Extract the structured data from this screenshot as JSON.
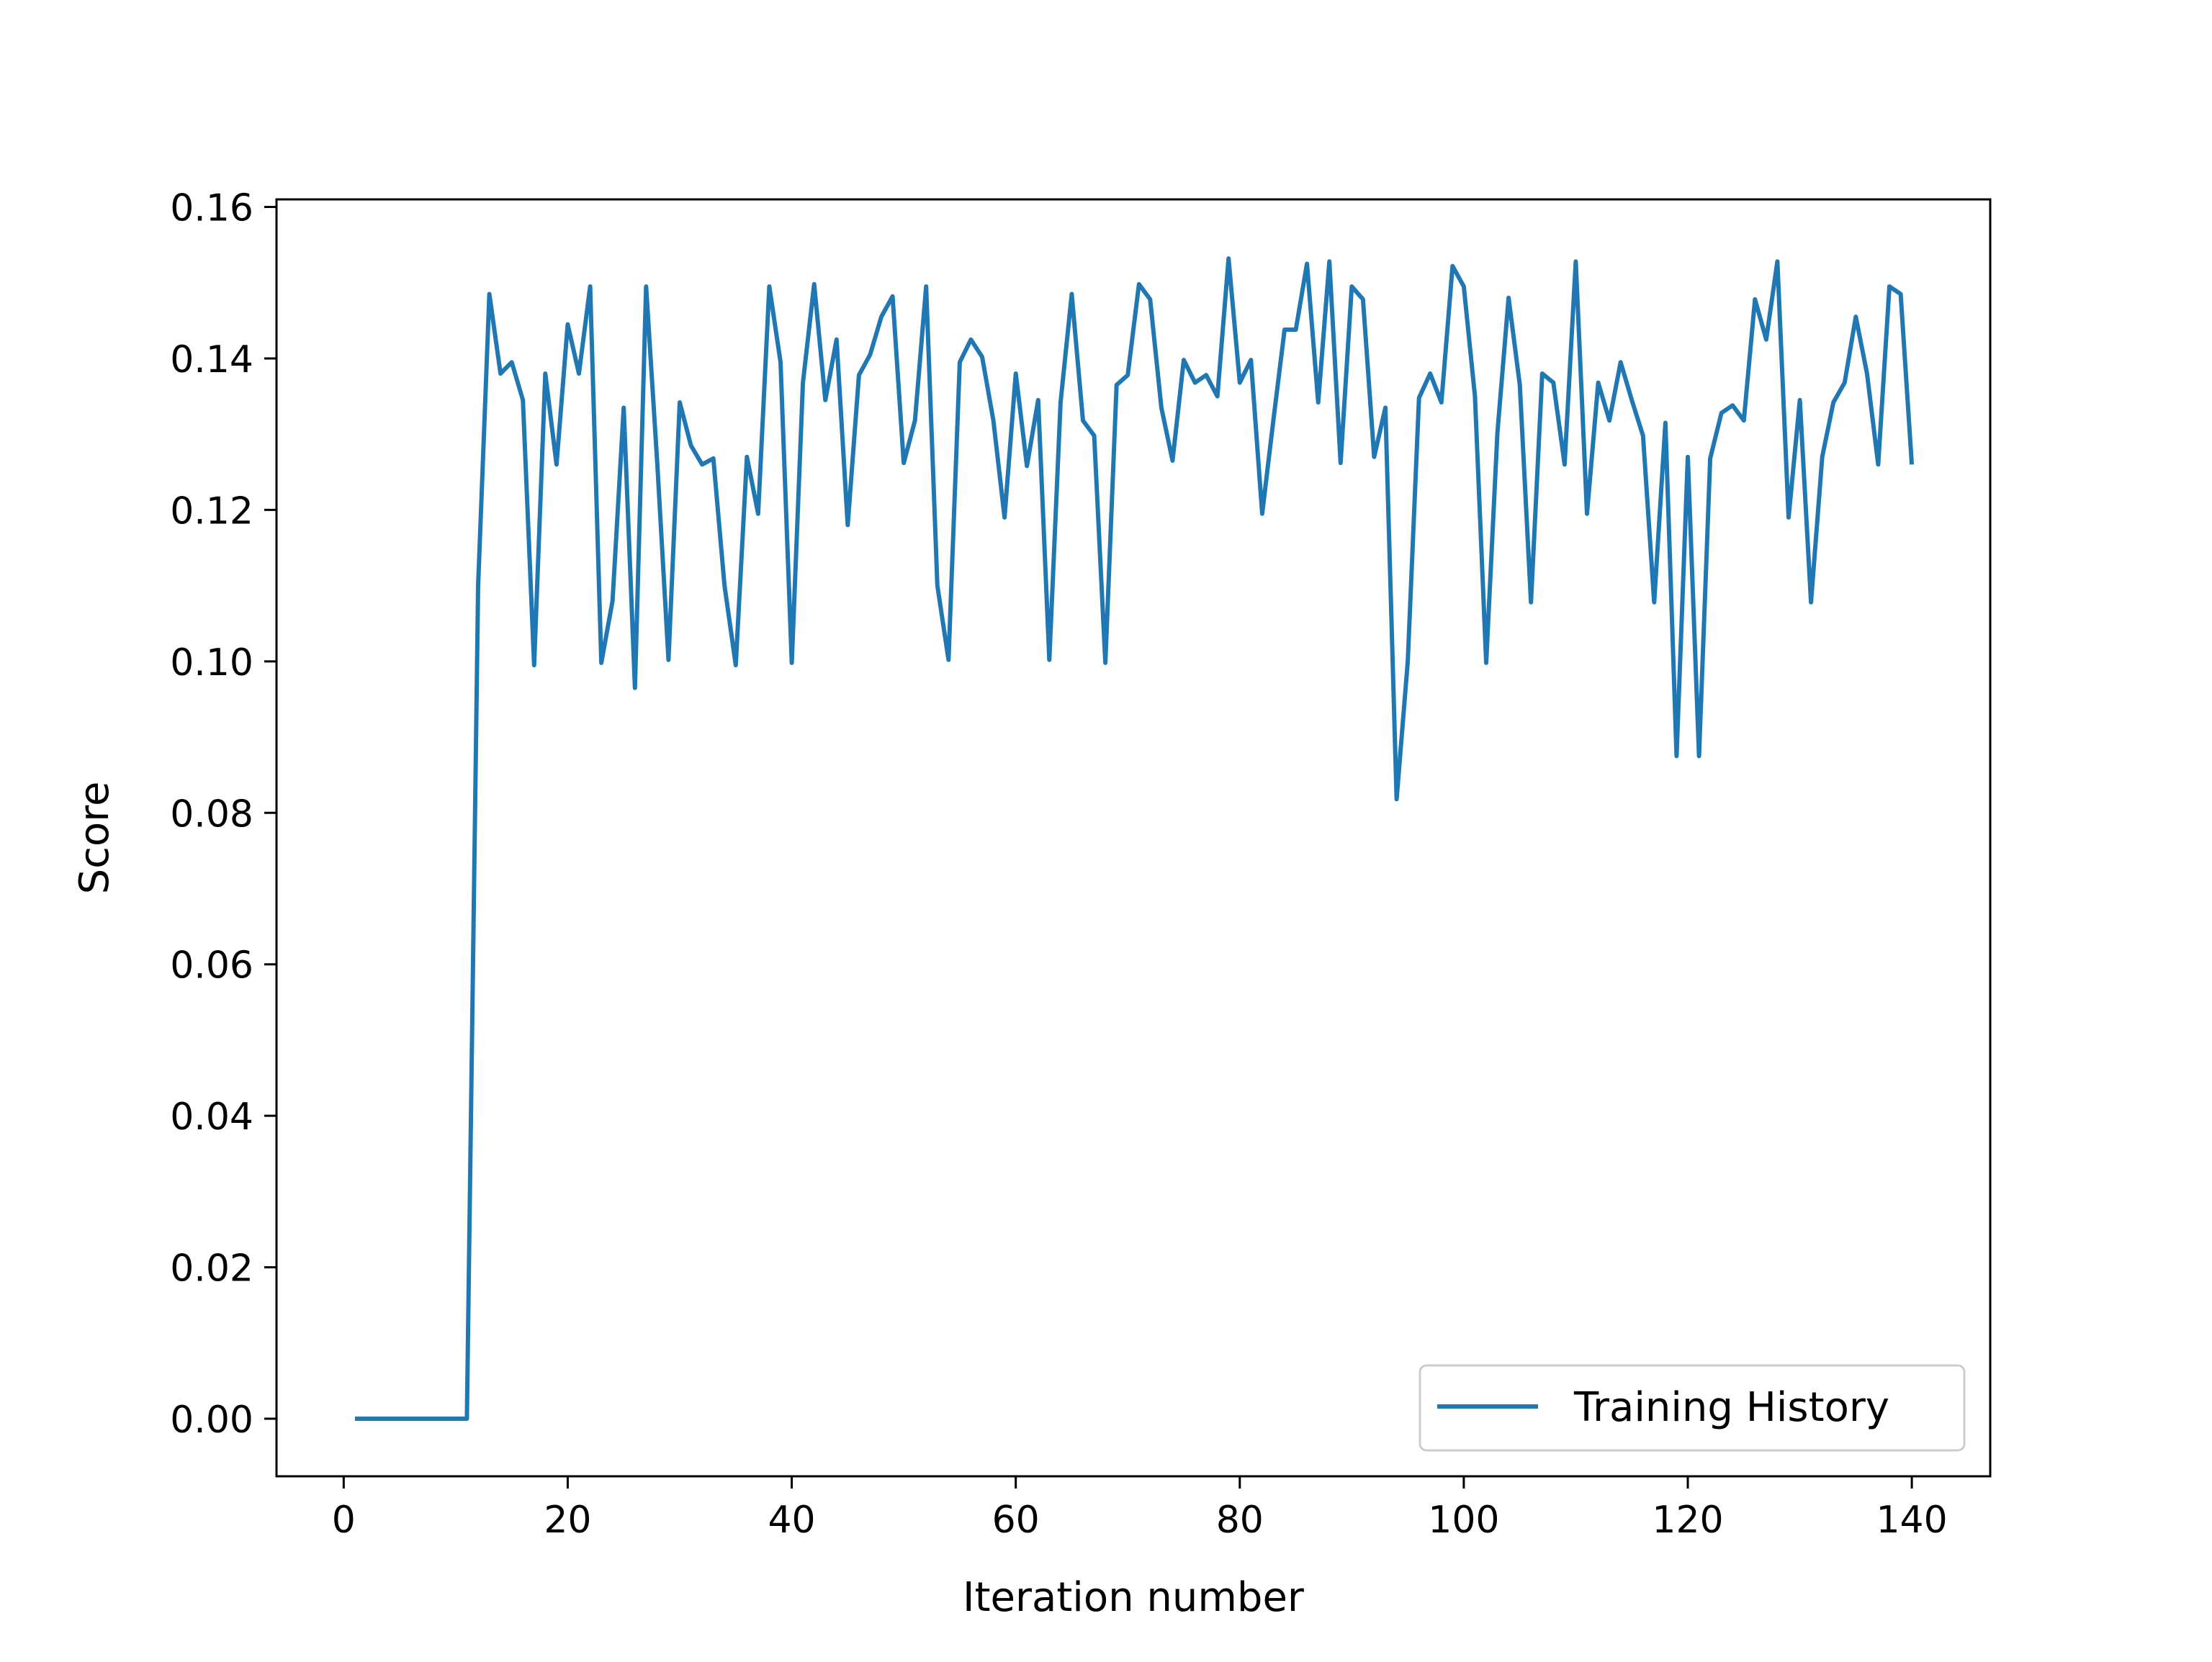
{
  "chart_data": {
    "type": "line",
    "title": "",
    "xlabel": "Iteration number",
    "ylabel": "Score",
    "xlim": [
      -6,
      147
    ],
    "ylim": [
      -0.0076,
      0.161
    ],
    "xticks": [
      0,
      20,
      40,
      60,
      80,
      100,
      120,
      140
    ],
    "xtick_labels": [
      "0",
      "20",
      "40",
      "60",
      "80",
      "100",
      "120",
      "140"
    ],
    "yticks": [
      0.0,
      0.02,
      0.04,
      0.06,
      0.08,
      0.1,
      0.12,
      0.14,
      0.16
    ],
    "ytick_labels": [
      "0.00",
      "0.02",
      "0.04",
      "0.06",
      "0.08",
      "0.10",
      "0.12",
      "0.14",
      "0.16"
    ],
    "grid": false,
    "legend": {
      "position": "lower-right",
      "entries": [
        "Training History"
      ]
    },
    "series": [
      {
        "name": "Training History",
        "color": "#1f77b4",
        "x_start": 1,
        "x_step": 1,
        "values": [
          0.0,
          0.0,
          0.0,
          0.0,
          0.0,
          0.0,
          0.0,
          0.0,
          0.0,
          0.0,
          0.0,
          0.11,
          0.1485,
          0.138,
          0.1395,
          0.1345,
          0.0995,
          0.138,
          0.126,
          0.1445,
          0.138,
          0.1495,
          0.0998,
          0.108,
          0.1335,
          0.0965,
          0.1495,
          0.126,
          0.1002,
          0.1342,
          0.1285,
          0.126,
          0.1268,
          0.11,
          0.0995,
          0.127,
          0.1195,
          0.1495,
          0.1395,
          0.0998,
          0.1368,
          0.1498,
          0.1345,
          0.1425,
          0.118,
          0.1378,
          0.1405,
          0.1455,
          0.1482,
          0.1262,
          0.1318,
          0.1495,
          0.11,
          0.1002,
          0.1395,
          0.1425,
          0.1402,
          0.1318,
          0.119,
          0.138,
          0.1258,
          0.1345,
          0.1002,
          0.1342,
          0.1485,
          0.1318,
          0.1298,
          0.0998,
          0.1365,
          0.1378,
          0.1498,
          0.1478,
          0.1335,
          0.1265,
          0.1398,
          0.1368,
          0.1378,
          0.135,
          0.1532,
          0.1368,
          0.1398,
          0.1195,
          0.1318,
          0.1438,
          0.1438,
          0.1525,
          0.1342,
          0.1528,
          0.1262,
          0.1495,
          0.1478,
          0.127,
          0.1335,
          0.0818,
          0.1,
          0.1348,
          0.138,
          0.1342,
          0.1522,
          0.1495,
          0.135,
          0.0998,
          0.1302,
          0.148,
          0.1365,
          0.1078,
          0.138,
          0.1368,
          0.126,
          0.1528,
          0.1195,
          0.1368,
          0.1318,
          0.1395,
          0.1345,
          0.1298,
          0.1078,
          0.1315,
          0.0875,
          0.127,
          0.0875,
          0.1268,
          0.1328,
          0.1338,
          0.1318,
          0.1478,
          0.1425,
          0.1528,
          0.119,
          0.1345,
          0.1078,
          0.127,
          0.1342,
          0.1368,
          0.1455,
          0.138,
          0.126,
          0.1495,
          0.1485,
          0.126
        ]
      }
    ]
  }
}
